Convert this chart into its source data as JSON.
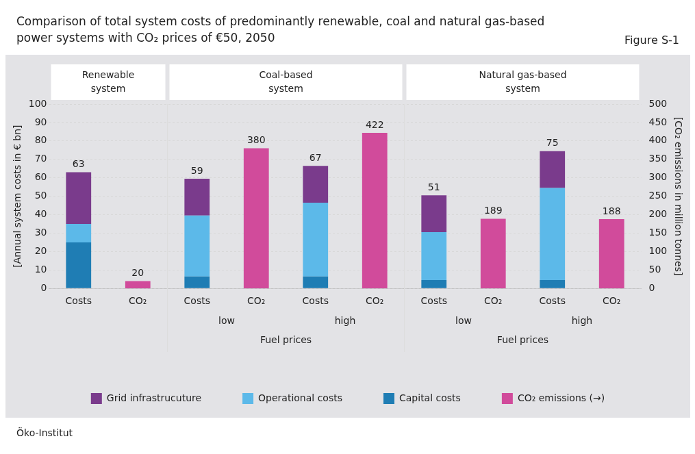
{
  "chart_data": {
    "type": "bar",
    "title": "Comparison of total system costs of predominantly renewable, coal and natural gas-based power systems with CO₂ prices of €50, 2050",
    "categories": [
      "Costs",
      "CO₂",
      "Costs",
      "CO₂",
      "Costs",
      "CO₂",
      "Costs",
      "CO₂",
      "Costs",
      "CO₂"
    ],
    "series": [
      {
        "name": "Capital costs",
        "color": "#1f7db4",
        "values": [
          25,
          null,
          6.5,
          null,
          6.5,
          null,
          4.5,
          null,
          4.5,
          null
        ]
      },
      {
        "name": "Operational costs",
        "color": "#5cb9e9",
        "values": [
          10,
          null,
          33,
          null,
          40,
          null,
          26,
          null,
          50,
          null
        ]
      },
      {
        "name": "Grid infrastrucuture",
        "color": "#7a3b8c",
        "values": [
          28,
          null,
          20,
          null,
          20,
          null,
          20,
          null,
          20,
          null
        ]
      },
      {
        "name": "CO₂ emissions (→)",
        "color": "#d14b9b",
        "type": "bar",
        "axis": "y2",
        "values": [
          null,
          20,
          null,
          380,
          null,
          422,
          null,
          189,
          null,
          188
        ],
        "value_labels": [
          null,
          "20",
          null,
          "380",
          null,
          "422",
          null,
          "189",
          null,
          "188"
        ]
      }
    ],
    "stacked": true,
    "totals": [
      "63",
      null,
      "59",
      null,
      "67",
      null,
      "51",
      null,
      "75",
      null
    ],
    "ylabel": "[Annual system costs in € bn]",
    "y2label": "[CO₂ emissions in million tonnes]",
    "ylim": [
      0,
      100
    ],
    "yticks": [
      0,
      10,
      20,
      30,
      40,
      50,
      60,
      70,
      80,
      90,
      100
    ],
    "y2lim": [
      0,
      500
    ],
    "y2ticks": [
      0,
      50,
      100,
      150,
      200,
      250,
      300,
      350,
      400,
      450,
      500
    ],
    "grid": "y",
    "legend": "bottom",
    "annotations": [
      "Figure S-1",
      "Renewable system",
      "Coal-based system",
      "Natural gas-based system",
      "low",
      "high",
      "low",
      "high",
      "Fuel prices",
      "Fuel prices",
      "Öko-Institut"
    ]
  }
}
